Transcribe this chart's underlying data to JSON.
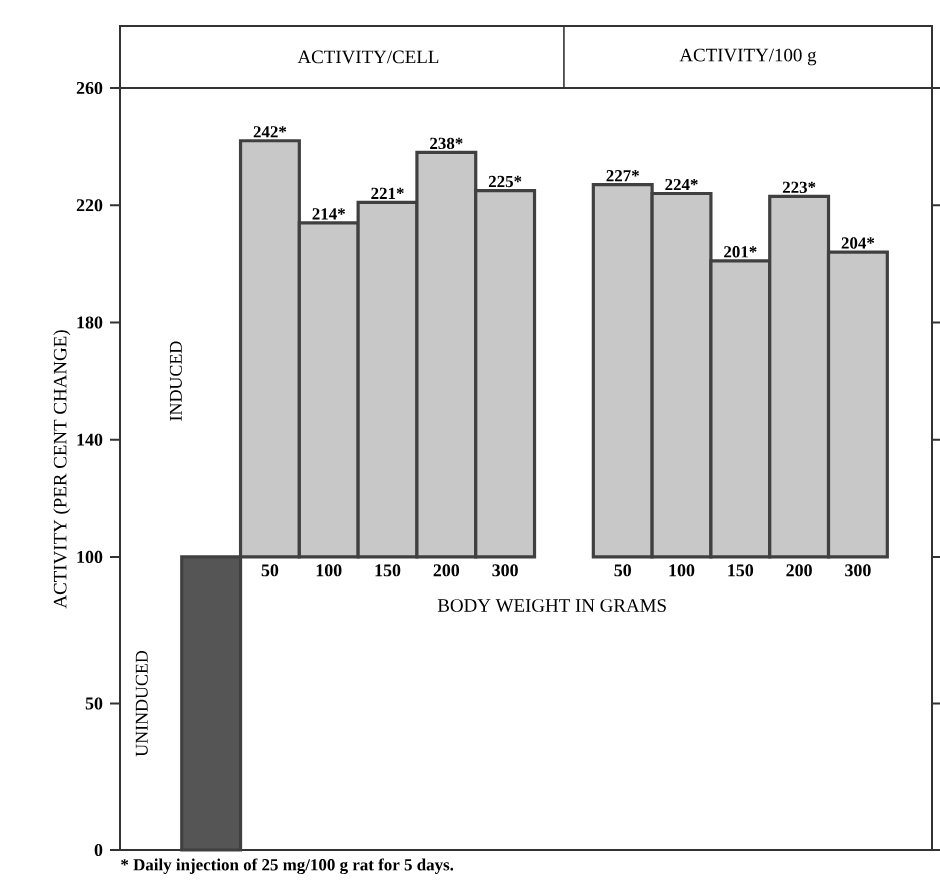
{
  "chart_data": {
    "type": "bar",
    "ylabel": "ACTIVITY (PER CENT CHANGE)",
    "xlabel": "BODY WEIGHT IN GRAMS",
    "categories": [
      null,
      "50",
      "100",
      "150",
      "200",
      "300",
      null,
      "50",
      "100",
      "150",
      "200",
      "300"
    ],
    "base": [
      0,
      100,
      100,
      100,
      100,
      100,
      null,
      100,
      100,
      100,
      100,
      100
    ],
    "values": [
      100,
      142,
      114,
      121,
      138,
      125,
      null,
      127,
      124,
      101,
      123,
      104
    ],
    "value_labels": [
      null,
      "242*",
      "214*",
      "221*",
      "238*",
      "225*",
      null,
      "227*",
      "224*",
      "201*",
      "223*",
      "204*"
    ],
    "colors": [
      "#555555",
      "#c8c8c8",
      "#c8c8c8",
      "#c8c8c8",
      "#c8c8c8",
      "#c8c8c8",
      "#c8c8c8",
      "#c8c8c8",
      "#c8c8c8",
      "#c8c8c8",
      "#c8c8c8",
      "#c8c8c8"
    ],
    "ylim": [
      0,
      260
    ],
    "yticks": [
      0,
      50,
      100,
      140,
      180,
      220,
      260
    ],
    "annotations": [
      "ACTIVITY/CELL",
      "ACTIVITY/100 g",
      "INDUCED",
      "UNINDUCED",
      "* Daily injection of 25 mg/100 g rat for 5 days."
    ]
  }
}
